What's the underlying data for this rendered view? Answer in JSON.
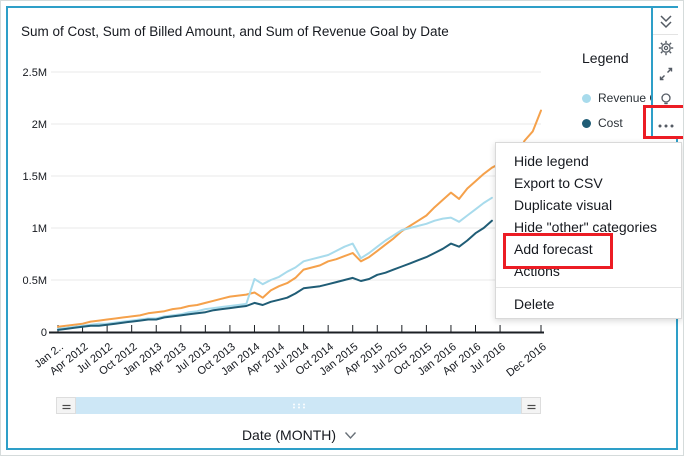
{
  "widget": {
    "title": "Sum of Cost, Sum of Billed Amount, and Sum of Revenue Goal by Date",
    "selection_border_color": "#2E9FC8"
  },
  "toolbar": {
    "icons": [
      "double-chevron-down",
      "gear",
      "expand",
      "lightbulb",
      "ellipsis"
    ]
  },
  "legend": {
    "title": "Legend",
    "items": [
      {
        "label": "Revenue G",
        "color": "#A8DBEC"
      },
      {
        "label": "Cost",
        "color": "#205D76"
      }
    ]
  },
  "menu": {
    "items": [
      "Hide legend",
      "Export to CSV",
      "Duplicate visual",
      "Hide \"other\" categories",
      "Add forecast",
      "Actions",
      "Delete"
    ],
    "highlighted_item": "Add forecast"
  },
  "annotations": {
    "box_color": "#EC1C24",
    "boxes": [
      "ellipsis-menu-button",
      "add-forecast-menu-item"
    ]
  },
  "slider": {
    "fill_color": "#CDE7F6"
  },
  "chart_data": {
    "type": "line",
    "title": "Sum of Cost, Sum of Billed Amount, and Sum of Revenue Goal by Date",
    "xlabel": "Date (MONTH)",
    "ylabel": "",
    "x_start": "Jan 2012",
    "x_end": "Dec 2016",
    "x_interval": "month",
    "x_tick_labels": [
      "Jan 2..",
      "Apr 2012",
      "Jul 2012",
      "Oct 2012",
      "Jan 2013",
      "Apr 2013",
      "Jul 2013",
      "Oct 2013",
      "Jan 2014",
      "Apr 2014",
      "Jul 2014",
      "Oct 2014",
      "Jan 2015",
      "Apr 2015",
      "Jul 2015",
      "Oct 2015",
      "Jan 2016",
      "Apr 2016",
      "Jul 2016",
      "Dec 2016"
    ],
    "x_tick_month_index": [
      0,
      3,
      6,
      9,
      12,
      15,
      18,
      21,
      24,
      27,
      30,
      33,
      36,
      39,
      42,
      45,
      48,
      51,
      54,
      59
    ],
    "y_tick_labels": [
      "2.5M",
      "2M",
      "1.5M",
      "1M",
      "0.5M",
      "0"
    ],
    "y_tick_values_M": [
      2.5,
      2,
      1.5,
      1,
      0.5,
      0
    ],
    "ylim_M": [
      0,
      2.5
    ],
    "grid": true,
    "legend_position": "right",
    "series": [
      {
        "name": "Billed Amount",
        "color": "#F5A14B",
        "values_M": [
          0.05,
          0.06,
          0.07,
          0.08,
          0.1,
          0.11,
          0.12,
          0.13,
          0.14,
          0.15,
          0.16,
          0.18,
          0.19,
          0.2,
          0.22,
          0.23,
          0.25,
          0.26,
          0.28,
          0.3,
          0.32,
          0.34,
          0.35,
          0.36,
          0.38,
          0.33,
          0.4,
          0.44,
          0.47,
          0.52,
          0.6,
          0.62,
          0.64,
          0.68,
          0.7,
          0.73,
          0.76,
          0.68,
          0.72,
          0.78,
          0.84,
          0.9,
          0.97,
          1.02,
          1.07,
          1.12,
          1.2,
          1.27,
          1.34,
          1.28,
          1.38,
          1.45,
          1.52,
          1.58,
          1.62,
          1.72,
          1.68,
          1.84,
          1.93,
          2.13
        ]
      },
      {
        "name": "Revenue Goal",
        "color": "#A8DBEC",
        "values_M": [
          0.03,
          0.04,
          0.05,
          0.06,
          0.07,
          0.08,
          0.08,
          0.09,
          0.1,
          0.11,
          0.12,
          0.13,
          0.13,
          0.15,
          0.16,
          0.17,
          0.19,
          0.2,
          0.22,
          0.23,
          0.24,
          0.25,
          0.26,
          0.27,
          0.51,
          0.46,
          0.5,
          0.53,
          0.58,
          0.62,
          0.68,
          0.7,
          0.72,
          0.74,
          0.78,
          0.82,
          0.85,
          0.71,
          0.76,
          0.82,
          0.88,
          0.93,
          0.98,
          1.0,
          1.02,
          1.04,
          1.07,
          1.09,
          1.1,
          1.06,
          1.12,
          1.18,
          1.24,
          1.29
        ]
      },
      {
        "name": "Cost",
        "color": "#205D76",
        "values_M": [
          0.02,
          0.03,
          0.04,
          0.05,
          0.06,
          0.06,
          0.07,
          0.08,
          0.09,
          0.1,
          0.11,
          0.12,
          0.12,
          0.14,
          0.15,
          0.16,
          0.17,
          0.18,
          0.19,
          0.21,
          0.22,
          0.23,
          0.24,
          0.25,
          0.28,
          0.26,
          0.29,
          0.31,
          0.33,
          0.37,
          0.42,
          0.43,
          0.44,
          0.46,
          0.48,
          0.5,
          0.52,
          0.49,
          0.51,
          0.55,
          0.57,
          0.6,
          0.63,
          0.66,
          0.69,
          0.72,
          0.76,
          0.8,
          0.85,
          0.82,
          0.88,
          0.95,
          1.0,
          1.07
        ]
      }
    ]
  }
}
